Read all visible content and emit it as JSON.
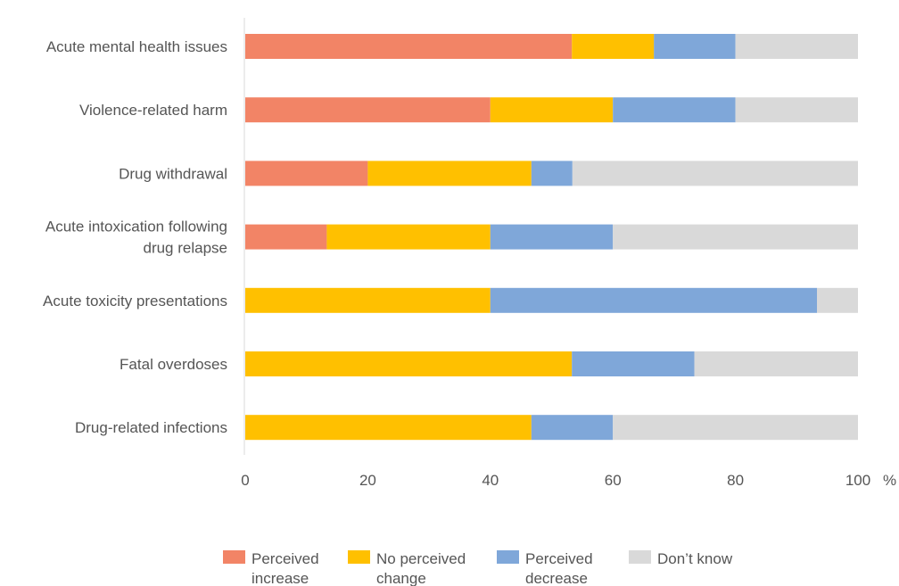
{
  "chart_data": {
    "type": "bar",
    "orientation": "horizontal",
    "stacked": true,
    "categories": [
      [
        "Acute mental health issues"
      ],
      [
        "Violence-related harm"
      ],
      [
        "Drug withdrawal"
      ],
      [
        "Acute intoxication following",
        "drug relapse"
      ],
      [
        "Acute toxicity presentations"
      ],
      [
        "Fatal overdoses"
      ],
      [
        "Drug-related infections"
      ]
    ],
    "series": [
      {
        "name": "Perceived increase",
        "legend_lines": [
          "Perceived",
          "increase"
        ],
        "color": "#F28466",
        "values": [
          53.3,
          40.0,
          20.0,
          13.3,
          0,
          0,
          0
        ]
      },
      {
        "name": "No perceived change",
        "legend_lines": [
          "No perceived",
          "change"
        ],
        "color": "#FFC000",
        "values": [
          13.4,
          20.0,
          26.7,
          26.7,
          40.0,
          53.3,
          46.7
        ]
      },
      {
        "name": "Perceived decrease",
        "legend_lines": [
          "Perceived",
          "decrease"
        ],
        "color": "#7FA7D9",
        "values": [
          13.3,
          20.0,
          6.7,
          20.0,
          53.3,
          20.0,
          13.3
        ]
      },
      {
        "name": "Don't know",
        "legend_lines": [
          "Don’t know"
        ],
        "color": "#D9D9D9",
        "values": [
          20.0,
          20.0,
          46.6,
          40.0,
          6.7,
          26.7,
          40.0
        ]
      }
    ],
    "x_ticks": [
      "0",
      "20",
      "40",
      "60",
      "80",
      "100"
    ],
    "x_unit": "%",
    "xlim": [
      0,
      100
    ],
    "grid": false,
    "legend_position": "bottom"
  }
}
